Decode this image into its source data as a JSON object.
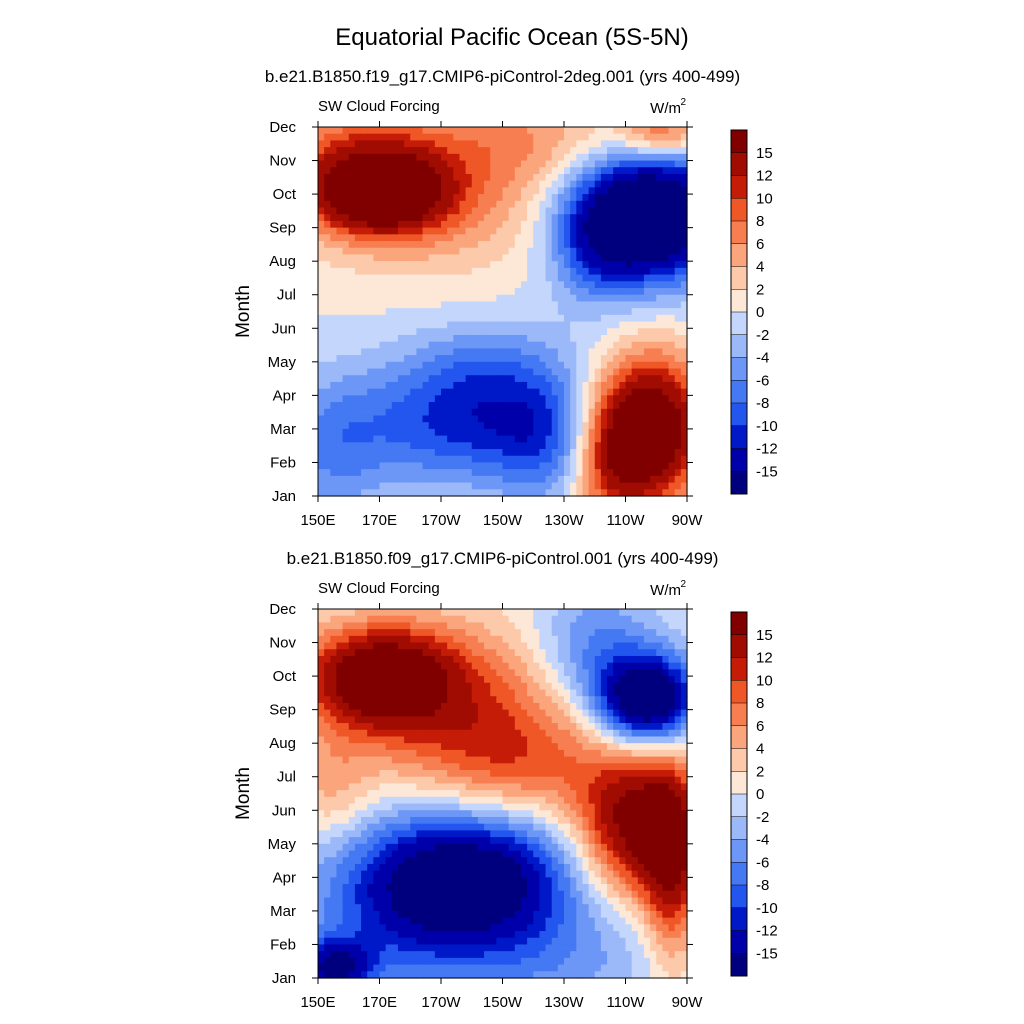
{
  "title": "Equatorial Pacific Ocean (5S-5N)",
  "colormap": [
    "#00007f",
    "#0000aa",
    "#0019c8",
    "#0b3ee3",
    "#2356ee",
    "#4479f3",
    "#6d97f6",
    "#9bb9f8",
    "#c4d6fb",
    "#e4edfc",
    "#fde8d8",
    "#fccaaa",
    "#fba57c",
    "#f77e50",
    "#ef5727",
    "#e23810",
    "#c41c07",
    "#a00c02",
    "#800000"
  ],
  "colorbar": {
    "ticks": [
      15,
      12,
      10,
      8,
      6,
      4,
      2,
      0,
      -2,
      -4,
      -6,
      -8,
      -10,
      -12,
      -15
    ]
  },
  "chart_data": [
    {
      "type": "heatmap",
      "subtitle": "b.e21.B1850.f19_g17.CMIP6-piControl-2deg.001 (yrs 400-499)",
      "left_label": "SW Cloud Forcing",
      "units": "W/m",
      "units_sup": "2",
      "ylabel": "Month",
      "x_tick_labels": [
        "150E",
        "170E",
        "170W",
        "150W",
        "130W",
        "110W",
        "90W"
      ],
      "x_range": [
        150,
        270
      ],
      "y_tick_labels": [
        "Jan",
        "Feb",
        "Mar",
        "Apr",
        "May",
        "Jun",
        "Jul",
        "Aug",
        "Sep",
        "Oct",
        "Nov",
        "Dec"
      ],
      "levels": [
        -15,
        -12,
        -10,
        -8,
        -6,
        -4,
        -2,
        0,
        2,
        4,
        6,
        8,
        10,
        12,
        15
      ],
      "field_hotspots": [
        {
          "lon": 170,
          "month": 9.0,
          "value": 16,
          "sx": 14,
          "sy": 0.8
        },
        {
          "lon": 185,
          "month": 9.2,
          "value": 8,
          "sx": 28,
          "sy": 1.6
        },
        {
          "lon": 160,
          "month": 10.0,
          "value": 6,
          "sx": 20,
          "sy": 1.2
        },
        {
          "lon": 222,
          "month": 10.7,
          "value": 4,
          "sx": 20,
          "sy": 0.9
        },
        {
          "lon": 262,
          "month": 10.8,
          "value": 9,
          "sx": 10,
          "sy": 0.5
        },
        {
          "lon": 258,
          "month": 8.3,
          "value": -24,
          "sx": 17,
          "sy": 1.3
        },
        {
          "lon": 240,
          "month": 7.5,
          "value": -6,
          "sx": 10,
          "sy": 1.3
        },
        {
          "lon": 258,
          "month": 2.0,
          "value": 22,
          "sx": 12,
          "sy": 1.5
        },
        {
          "lon": 245,
          "month": 1.0,
          "value": 8,
          "sx": 8,
          "sy": 1.4
        },
        {
          "lon": 200,
          "month": 2.2,
          "value": -11,
          "sx": 28,
          "sy": 1.3
        },
        {
          "lon": 205,
          "month": 4.0,
          "value": -4,
          "sx": 18,
          "sy": 0.9
        },
        {
          "lon": 155,
          "month": 1.3,
          "value": -5,
          "sx": 12,
          "sy": 1.5
        },
        {
          "lon": 222,
          "month": 1.5,
          "value": -4,
          "sx": 10,
          "sy": 1.4
        }
      ]
    },
    {
      "type": "heatmap",
      "subtitle": "b.e21.B1850.f09_g17.CMIP6-piControl.001 (yrs 400-499)",
      "left_label": "SW Cloud Forcing",
      "units": "W/m",
      "units_sup": "2",
      "ylabel": "Month",
      "x_tick_labels": [
        "150E",
        "170E",
        "170W",
        "150W",
        "130W",
        "110W",
        "90W"
      ],
      "x_range": [
        150,
        270
      ],
      "y_tick_labels": [
        "Jan",
        "Feb",
        "Mar",
        "Apr",
        "May",
        "Jun",
        "Jul",
        "Aug",
        "Sep",
        "Oct",
        "Nov",
        "Dec"
      ],
      "levels": [
        -15,
        -12,
        -10,
        -8,
        -6,
        -4,
        -2,
        0,
        2,
        4,
        6,
        8,
        10,
        12,
        15
      ],
      "field_hotspots": [
        {
          "lon": 170,
          "month": 9.0,
          "value": 16,
          "sx": 16,
          "sy": 1.0
        },
        {
          "lon": 190,
          "month": 8.3,
          "value": 9,
          "sx": 30,
          "sy": 1.7
        },
        {
          "lon": 215,
          "month": 6.3,
          "value": 7,
          "sx": 22,
          "sy": 1.3
        },
        {
          "lon": 255,
          "month": 4.5,
          "value": 18,
          "sx": 14,
          "sy": 1.5
        },
        {
          "lon": 265,
          "month": 3.0,
          "value": 10,
          "sx": 6,
          "sy": 2.0
        },
        {
          "lon": 257,
          "month": 8.3,
          "value": -22,
          "sx": 11,
          "sy": 0.9
        },
        {
          "lon": 240,
          "month": 9.8,
          "value": -7,
          "sx": 14,
          "sy": 1.3
        },
        {
          "lon": 200,
          "month": 3.0,
          "value": -17,
          "sx": 24,
          "sy": 1.4
        },
        {
          "lon": 180,
          "month": 2.0,
          "value": -7,
          "sx": 25,
          "sy": 1.8
        },
        {
          "lon": 155,
          "month": 0.3,
          "value": -14,
          "sx": 9,
          "sy": 0.6
        },
        {
          "lon": 155,
          "month": 5.5,
          "value": 4,
          "sx": 9,
          "sy": 1.2
        },
        {
          "lon": 230,
          "month": 0.5,
          "value": -4,
          "sx": 25,
          "sy": 1.2
        }
      ]
    }
  ]
}
